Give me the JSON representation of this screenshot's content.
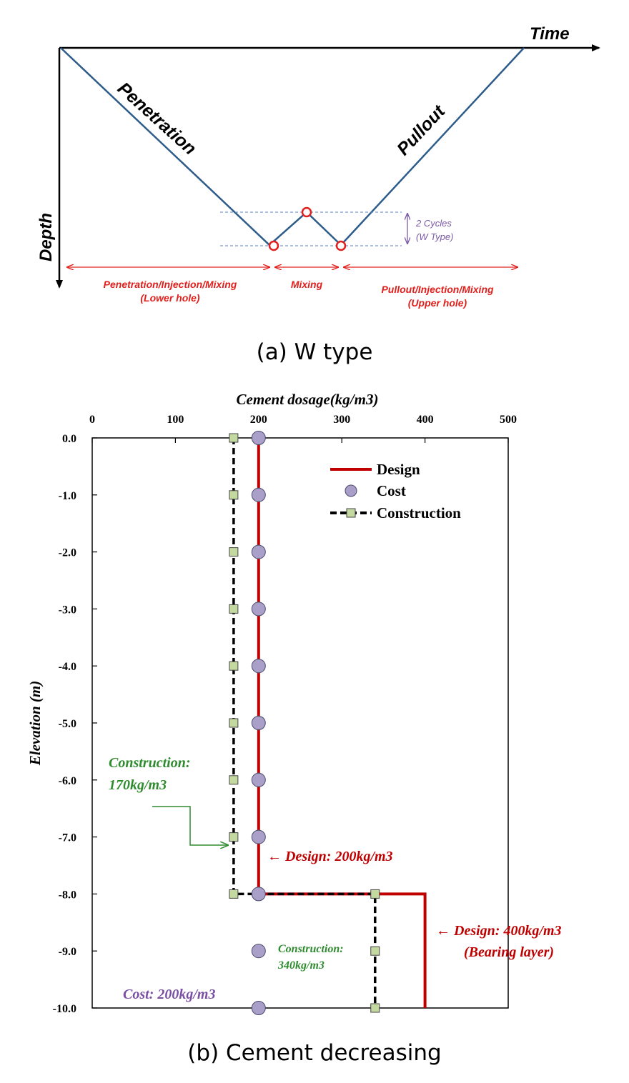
{
  "diagram_a": {
    "x_axis_label": "Time",
    "y_axis_label": "Depth",
    "penetration_label": "Penetration",
    "pullout_label": "Pullout",
    "cycles_label_1": "2 Cycles",
    "cycles_label_2": "(W Type)",
    "phase_1_line_1": "Penetration/Injection/Mixing",
    "phase_1_line_2": "(Lower hole)",
    "phase_2": "Mixing",
    "phase_3_line_1": "Pullout/Injection/Mixing",
    "phase_3_line_2": "(Upper hole)",
    "caption": "(a) W type",
    "colors": {
      "path": "#2e5c8a",
      "annotation": "#e0201c",
      "cycles": "#7a5aa6"
    }
  },
  "chart_data": {
    "type": "line",
    "title": "Cement dosage(kg/m3)",
    "xlabel": "Cement dosage(kg/m3)",
    "ylabel": "Elevation (m)",
    "xlim": [
      0,
      500
    ],
    "ylim": [
      -10,
      0
    ],
    "x_ticks": [
      0,
      100,
      200,
      300,
      400,
      500
    ],
    "y_ticks": [
      0,
      -1,
      -2,
      -3,
      -4,
      -5,
      -6,
      -7,
      -8,
      -9,
      -10
    ],
    "y_tick_labels": [
      "0.0",
      "-1.0",
      "-2.0",
      "-3.0",
      "-4.0",
      "-5.0",
      "-6.0",
      "-7.0",
      "-8.0",
      "-9.0",
      "-10.0"
    ],
    "legend_position": "top-right",
    "series": [
      {
        "name": "Design",
        "style": "line",
        "color": "#c00000",
        "points": [
          [
            200,
            0
          ],
          [
            200,
            -8
          ],
          [
            400,
            -8
          ],
          [
            400,
            -10
          ]
        ]
      },
      {
        "name": "Cost",
        "style": "markers",
        "color": "#a99fc9",
        "points": [
          [
            200,
            0
          ],
          [
            200,
            -1
          ],
          [
            200,
            -2
          ],
          [
            200,
            -3
          ],
          [
            200,
            -4
          ],
          [
            200,
            -5
          ],
          [
            200,
            -6
          ],
          [
            200,
            -7
          ],
          [
            200,
            -8
          ],
          [
            200,
            -9
          ],
          [
            200,
            -10
          ]
        ]
      },
      {
        "name": "Construction",
        "style": "dashed-line-square-markers",
        "color": "#000000",
        "marker_color": "#c4d9a0",
        "points": [
          [
            170,
            0
          ],
          [
            170,
            -1
          ],
          [
            170,
            -2
          ],
          [
            170,
            -3
          ],
          [
            170,
            -4
          ],
          [
            170,
            -5
          ],
          [
            170,
            -6
          ],
          [
            170,
            -7
          ],
          [
            170,
            -8
          ],
          [
            340,
            -8
          ],
          [
            340,
            -9
          ],
          [
            340,
            -10
          ]
        ]
      }
    ],
    "annotations": {
      "construction_170_line1": "Construction:",
      "construction_170_line2": "170kg/m3",
      "design_200": "← Design: 200kg/m3",
      "design_400_line1": "← Design: 400kg/m3",
      "design_400_line2": "(Bearing layer)",
      "construction_340_line1": "Construction:",
      "construction_340_line2": "340kg/m3",
      "cost_200": "Cost: 200kg/m3"
    },
    "annotation_colors": {
      "construction": "#2e8b2e",
      "design": "#c00000",
      "cost": "#7a4fa3"
    },
    "caption": "(b) Cement decreasing"
  }
}
